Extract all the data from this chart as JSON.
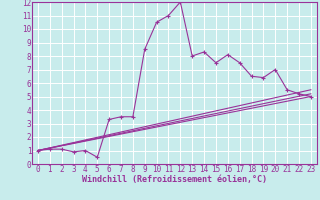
{
  "xlabel": "Windchill (Refroidissement éolien,°C)",
  "bg_color": "#c8ecec",
  "line_color": "#993399",
  "grid_color": "#ffffff",
  "xlim": [
    -0.5,
    23.5
  ],
  "ylim": [
    0,
    12
  ],
  "xticks": [
    0,
    1,
    2,
    3,
    4,
    5,
    6,
    7,
    8,
    9,
    10,
    11,
    12,
    13,
    14,
    15,
    16,
    17,
    18,
    19,
    20,
    21,
    22,
    23
  ],
  "yticks": [
    0,
    1,
    2,
    3,
    4,
    5,
    6,
    7,
    8,
    9,
    10,
    11,
    12
  ],
  "series": [
    [
      0,
      1
    ],
    [
      1,
      1.1
    ],
    [
      2,
      1.1
    ],
    [
      3,
      0.9
    ],
    [
      4,
      1.0
    ],
    [
      5,
      0.5
    ],
    [
      6,
      3.3
    ],
    [
      7,
      3.5
    ],
    [
      8,
      3.5
    ],
    [
      9,
      8.5
    ],
    [
      10,
      10.5
    ],
    [
      11,
      11.0
    ],
    [
      12,
      12.0
    ],
    [
      13,
      8.0
    ],
    [
      14,
      8.3
    ],
    [
      15,
      7.5
    ],
    [
      16,
      8.1
    ],
    [
      17,
      7.5
    ],
    [
      18,
      6.5
    ],
    [
      19,
      6.4
    ],
    [
      20,
      7.0
    ],
    [
      21,
      5.5
    ],
    [
      22,
      5.2
    ],
    [
      23,
      5.0
    ]
  ],
  "line1": [
    [
      0,
      1
    ],
    [
      23,
      5.5
    ]
  ],
  "line2": [
    [
      0,
      1
    ],
    [
      23,
      5.0
    ]
  ],
  "line3": [
    [
      0,
      1
    ],
    [
      23,
      5.2
    ]
  ],
  "tick_fontsize": 5.5,
  "xlabel_fontsize": 6.0,
  "line_width": 0.8,
  "marker_size": 3.0
}
